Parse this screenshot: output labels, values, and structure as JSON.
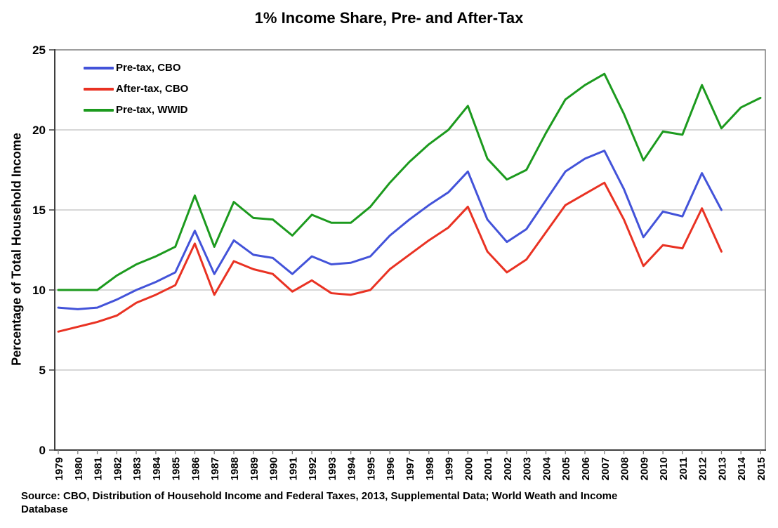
{
  "chart_data": {
    "type": "line",
    "title": "1% Income Share, Pre- and After-Tax",
    "xlabel": "",
    "ylabel": "Percentage of Total Household Income",
    "ylim": [
      0,
      25
    ],
    "ytick_step": 5,
    "grid": true,
    "legend_position": "top-left-inside",
    "x": [
      1979,
      1980,
      1981,
      1982,
      1983,
      1984,
      1985,
      1986,
      1987,
      1988,
      1989,
      1990,
      1991,
      1992,
      1993,
      1994,
      1995,
      1996,
      1997,
      1998,
      1999,
      2000,
      2001,
      2002,
      2003,
      2004,
      2005,
      2006,
      2007,
      2008,
      2009,
      2010,
      2011,
      2012,
      2013,
      2014,
      2015
    ],
    "series": [
      {
        "name": "Pre-tax, CBO",
        "color": "#4353D9",
        "values": [
          8.9,
          8.8,
          8.9,
          9.4,
          10.0,
          10.5,
          11.1,
          13.7,
          11.0,
          13.1,
          12.2,
          12.0,
          11.0,
          12.1,
          11.6,
          11.7,
          12.1,
          13.4,
          14.4,
          15.3,
          16.1,
          17.4,
          14.4,
          13.0,
          13.8,
          15.6,
          17.4,
          18.2,
          18.7,
          16.3,
          13.3,
          14.9,
          14.6,
          17.3,
          15.0,
          null,
          null
        ]
      },
      {
        "name": "After-tax, CBO",
        "color": "#E93223",
        "values": [
          7.4,
          7.7,
          8.0,
          8.4,
          9.2,
          9.7,
          10.3,
          12.9,
          9.7,
          11.8,
          11.3,
          11.0,
          9.9,
          10.6,
          9.8,
          9.7,
          10.0,
          11.3,
          12.2,
          13.1,
          13.9,
          15.2,
          12.4,
          11.1,
          11.9,
          13.6,
          15.3,
          16.0,
          16.7,
          14.4,
          11.5,
          12.8,
          12.6,
          15.1,
          12.4,
          null,
          null
        ]
      },
      {
        "name": "Pre-tax, WWID",
        "color": "#1C9A1E",
        "values": [
          10.0,
          10.0,
          10.0,
          10.9,
          11.6,
          12.1,
          12.7,
          15.9,
          12.7,
          15.5,
          14.5,
          14.4,
          13.4,
          14.7,
          14.2,
          14.2,
          15.2,
          16.7,
          18.0,
          19.1,
          20.0,
          21.5,
          18.2,
          16.9,
          17.5,
          19.8,
          21.9,
          22.8,
          23.5,
          21.0,
          18.1,
          19.9,
          19.7,
          22.8,
          20.1,
          21.4,
          22.0
        ]
      }
    ],
    "y_ticks": [
      0,
      5,
      10,
      15,
      20,
      25
    ],
    "source_note_line1": "Source: CBO, Distribution of Household Income and Federal Taxes, 2013, Supplemental Data; World Weath and Income",
    "source_note_line2": "Database"
  },
  "colors": {
    "gridline": "#BFBFBF",
    "plot_border": "#7F7F7F",
    "axis": "#3F3F3F",
    "background": "#FFFFFF"
  }
}
